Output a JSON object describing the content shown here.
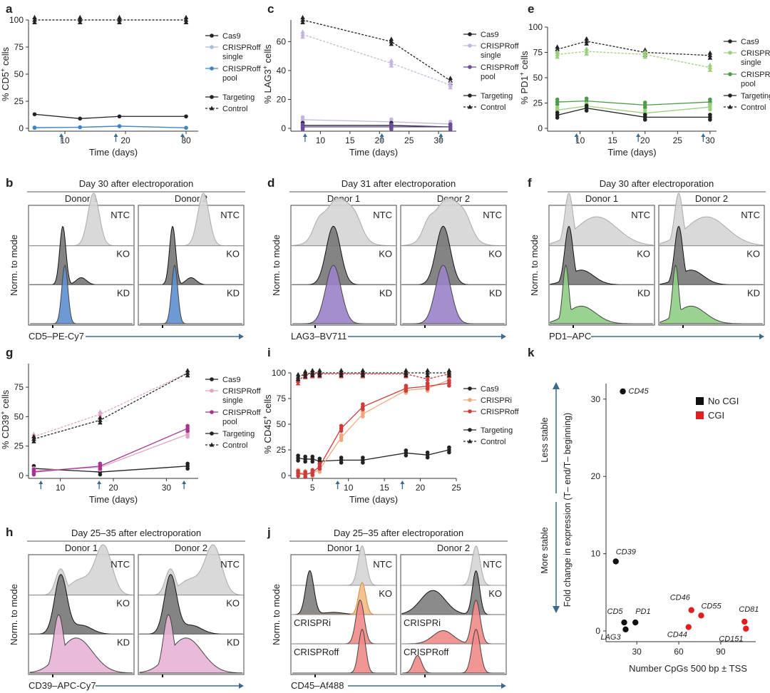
{
  "colors": {
    "cas9": "#222222",
    "off_single": "#aabbd9",
    "off_pool": "#3b86c3",
    "lag_single": "#c5b4dd",
    "lag_pool": "#6c4ba0",
    "pd_single": "#9ccf7c",
    "pd_pool": "#4f9a4a",
    "cd39_single": "#e2a2c8",
    "cd39_pool": "#a4348f",
    "crispri": "#f0a87a",
    "crisproff_red": "#cc3a3a",
    "arrow": "#3a6a8c",
    "gray_hist": "#d5d5d5",
    "dark_hist": "#777777",
    "ko_orange": "#f3c28e"
  },
  "chart_data": [
    {
      "panel": "a",
      "type": "line",
      "ylabel_pre": "% CD5",
      "ylabel_post": " cells",
      "sup": "+",
      "xlabel": "Time (days)",
      "xlim": [
        4,
        32
      ],
      "ylim": [
        0,
        100
      ],
      "xticks": [
        10,
        20,
        30
      ],
      "yticks": [
        0,
        25,
        50,
        75,
        100
      ],
      "arrows": [
        10,
        19,
        30
      ],
      "legend": [
        {
          "label": "Cas9",
          "color": "#222222",
          "marker": "circle",
          "style": "solid"
        },
        {
          "label": "CRISPRoff single",
          "color": "#aabbd9",
          "marker": "circle",
          "style": "solid"
        },
        {
          "label": "CRISPRoff pool",
          "color": "#3b86c3",
          "marker": "circle",
          "style": "solid"
        },
        {
          "gap": true
        },
        {
          "label": "Targeting",
          "color": "#222222",
          "marker": "circle",
          "style": "solid"
        },
        {
          "label": "Control",
          "color": "#222222",
          "marker": "triangle",
          "style": "dashed"
        }
      ],
      "series": [
        {
          "color": "#222222",
          "marker": "circle",
          "style": "solid",
          "x": [
            5,
            12.5,
            19,
            30
          ],
          "y": [
            13,
            9,
            11,
            11
          ]
        },
        {
          "color": "#aabbd9",
          "marker": "circle",
          "style": "solid",
          "x": [
            5,
            12.5,
            19,
            30
          ],
          "y": [
            1,
            1,
            2,
            0.5
          ]
        },
        {
          "color": "#3b86c3",
          "marker": "circle",
          "style": "solid",
          "x": [
            5,
            12.5,
            19,
            30
          ],
          "y": [
            0.5,
            1,
            2,
            0.5
          ]
        },
        {
          "color": "#3b86c3",
          "marker": "triangle",
          "style": "dashed",
          "x": [
            5,
            12.5,
            19,
            30
          ],
          "y": [
            100,
            100,
            100,
            100
          ]
        },
        {
          "color": "#222222",
          "marker": "triangle",
          "style": "dashed",
          "x": [
            5,
            12.5,
            19,
            30
          ],
          "y": [
            100,
            100,
            100,
            100
          ]
        }
      ]
    },
    {
      "panel": "c",
      "type": "line",
      "ylabel_pre": "% LAG3",
      "ylabel_post": " cells",
      "sup": "+",
      "xlabel": "Time (days)",
      "xlim": [
        5,
        33
      ],
      "ylim": [
        0,
        75
      ],
      "xticks": [
        10,
        15,
        20,
        25,
        30
      ],
      "yticks": [
        0,
        20,
        40,
        60
      ],
      "arrows": [
        8,
        21,
        31
      ],
      "legend": [
        {
          "label": "Cas9",
          "color": "#222222",
          "marker": "circle",
          "style": "solid"
        },
        {
          "label": "CRISPRoff single",
          "color": "#c5b4dd",
          "marker": "circle",
          "style": "solid"
        },
        {
          "label": "CRISPRoff pool",
          "color": "#6c4ba0",
          "marker": "circle",
          "style": "solid"
        },
        {
          "gap": true
        },
        {
          "label": "Targeting",
          "color": "#222222",
          "marker": "circle",
          "style": "solid"
        },
        {
          "label": "Control",
          "color": "#222222",
          "marker": "triangle",
          "style": "dashed"
        }
      ],
      "series": [
        {
          "color": "#c5b4dd",
          "marker": "circle",
          "style": "solid",
          "x": [
            7,
            22,
            32
          ],
          "y": [
            6,
            4.5,
            3
          ]
        },
        {
          "color": "#222222",
          "marker": "circle",
          "style": "solid",
          "x": [
            7,
            22,
            32
          ],
          "y": [
            2,
            2,
            1
          ]
        },
        {
          "color": "#6c4ba0",
          "marker": "circle",
          "style": "solid",
          "x": [
            7,
            22,
            32
          ],
          "y": [
            1,
            1,
            1
          ]
        },
        {
          "color": "#222222",
          "marker": "triangle",
          "style": "dashed",
          "x": [
            7,
            22,
            32
          ],
          "y": [
            75,
            60,
            33
          ]
        },
        {
          "color": "#c5b4dd",
          "marker": "triangle",
          "style": "dashed",
          "x": [
            7,
            22,
            32
          ],
          "y": [
            65,
            45,
            30
          ]
        }
      ]
    },
    {
      "panel": "e",
      "type": "line",
      "ylabel_pre": "% PD1",
      "ylabel_post": " cells",
      "sup": "+",
      "xlabel": "Time (days)",
      "xlim": [
        5,
        31
      ],
      "ylim": [
        0,
        100
      ],
      "xticks": [
        10,
        15,
        20,
        25,
        30
      ],
      "yticks": [
        0,
        25,
        50,
        75,
        100
      ],
      "arrows": [
        10,
        19.5,
        29.5
      ],
      "legend": [
        {
          "label": "Cas9",
          "color": "#222222",
          "marker": "circle",
          "style": "solid"
        },
        {
          "label": "CRISPRoff single",
          "color": "#9ccf7c",
          "marker": "circle",
          "style": "solid"
        },
        {
          "label": "CRISPRoff pool",
          "color": "#4f9a4a",
          "marker": "circle",
          "style": "solid"
        },
        {
          "label": "Targeting",
          "color": "#222222",
          "marker": "circle",
          "style": "solid"
        },
        {
          "label": "Control",
          "color": "#222222",
          "marker": "triangle",
          "style": "dashed"
        }
      ],
      "series": [
        {
          "color": "#4f9a4a",
          "marker": "circle",
          "style": "solid",
          "x": [
            6.5,
            11,
            20,
            30
          ],
          "y": [
            26,
            27,
            23,
            26
          ]
        },
        {
          "color": "#9ccf7c",
          "marker": "circle",
          "style": "solid",
          "x": [
            6.5,
            11,
            20,
            30
          ],
          "y": [
            18,
            22,
            15,
            21
          ]
        },
        {
          "color": "#222222",
          "marker": "circle",
          "style": "solid",
          "x": [
            6.5,
            11,
            20,
            30
          ],
          "y": [
            13,
            20,
            11,
            11
          ]
        },
        {
          "color": "#222222",
          "marker": "triangle",
          "style": "dashed",
          "x": [
            6.5,
            11,
            20,
            30
          ],
          "y": [
            78,
            86,
            75,
            72
          ]
        },
        {
          "color": "#9ccf7c",
          "marker": "triangle",
          "style": "dashed",
          "x": [
            6.5,
            11,
            20,
            30
          ],
          "y": [
            73,
            76,
            73,
            60
          ]
        }
      ]
    },
    {
      "panel": "g",
      "type": "line",
      "ylabel_pre": "% CD39",
      "ylabel_post": " cells",
      "sup": "+",
      "xlabel": "Time (days)",
      "xlim": [
        4,
        36
      ],
      "ylim": [
        0,
        95
      ],
      "xticks": [
        10,
        20,
        30
      ],
      "yticks": [
        0,
        25,
        50,
        75
      ],
      "arrows": [
        7,
        18,
        34
      ],
      "legend": [
        {
          "label": "Cas9",
          "color": "#222222",
          "marker": "circle",
          "style": "solid"
        },
        {
          "label": "CRISPRoff single",
          "color": "#e2a2c8",
          "marker": "circle",
          "style": "solid"
        },
        {
          "label": "CRISPRoff pool",
          "color": "#a4348f",
          "marker": "circle",
          "style": "solid"
        },
        {
          "label": "Targeting",
          "color": "#222222",
          "marker": "circle",
          "style": "solid"
        },
        {
          "label": "Control",
          "color": "#222222",
          "marker": "triangle",
          "style": "dashed"
        }
      ],
      "series": [
        {
          "color": "#222222",
          "marker": "circle",
          "style": "solid",
          "x": [
            5,
            17.5,
            34
          ],
          "y": [
            6,
            3,
            8
          ]
        },
        {
          "color": "#e2a2c8",
          "marker": "circle",
          "style": "solid",
          "x": [
            5,
            17.5,
            34
          ],
          "y": [
            4,
            7,
            35
          ]
        },
        {
          "color": "#a4348f",
          "marker": "circle",
          "style": "solid",
          "x": [
            5,
            17.5,
            34
          ],
          "y": [
            3,
            8,
            40
          ]
        },
        {
          "color": "#e2a2c8",
          "marker": "triangle",
          "style": "dashed",
          "x": [
            5,
            17.5,
            34
          ],
          "y": [
            33,
            52,
            87
          ]
        },
        {
          "color": "#222222",
          "marker": "triangle",
          "style": "dashed",
          "x": [
            5,
            17.5,
            34
          ],
          "y": [
            31,
            47,
            87
          ]
        }
      ]
    },
    {
      "panel": "i",
      "type": "line",
      "ylabel_pre": "% CD45",
      "ylabel_post": " cells",
      "sup": "+",
      "xlabel": "Time (days)",
      "xlim": [
        2,
        25
      ],
      "ylim": [
        0,
        100
      ],
      "xticks": [
        5,
        10,
        15,
        20,
        25
      ],
      "yticks": [
        0,
        25,
        50,
        75,
        100
      ],
      "arrows": [
        9,
        18
      ],
      "legend": [
        {
          "label": "Cas9",
          "color": "#222222",
          "marker": "circle",
          "style": "solid"
        },
        {
          "label": "CRISPRi",
          "color": "#f0a87a",
          "marker": "circle",
          "style": "solid"
        },
        {
          "label": "CRISPRoff",
          "color": "#cc3a3a",
          "marker": "circle",
          "style": "solid"
        },
        {
          "gap": true
        },
        {
          "label": "Targeting",
          "color": "#222222",
          "marker": "circle",
          "style": "solid"
        },
        {
          "label": "Control",
          "color": "#222222",
          "marker": "triangle",
          "style": "dashed"
        }
      ],
      "series": [
        {
          "color": "#222222",
          "marker": "circle",
          "style": "solid",
          "x": [
            3,
            4,
            5,
            6,
            9,
            12,
            18,
            21,
            24
          ],
          "y": [
            17,
            16,
            16,
            14,
            15,
            15,
            22,
            20,
            25
          ]
        },
        {
          "color": "#f0a87a",
          "marker": "circle",
          "style": "solid",
          "x": [
            3,
            4,
            5,
            6,
            9,
            12,
            18,
            21,
            24
          ],
          "y": [
            3,
            2,
            2,
            6,
            37,
            60,
            83,
            85,
            93
          ]
        },
        {
          "color": "#cc3a3a",
          "marker": "circle",
          "style": "solid",
          "x": [
            3,
            4,
            5,
            6,
            9,
            12,
            18,
            21,
            24
          ],
          "y": [
            2,
            1,
            3,
            9,
            46,
            67,
            85,
            87,
            90
          ]
        },
        {
          "color": "#cc3a3a",
          "marker": "triangle",
          "style": "dashed",
          "x": [
            3,
            4,
            5,
            6,
            9,
            12,
            18,
            21,
            24
          ],
          "y": [
            92,
            98,
            99,
            99,
            99,
            99,
            99,
            94,
            99
          ]
        },
        {
          "color": "#222222",
          "marker": "triangle",
          "style": "dashed",
          "x": [
            3,
            4,
            5,
            6,
            9,
            12,
            18,
            21,
            24
          ],
          "y": [
            96,
            99,
            100,
            100,
            100,
            100,
            100,
            100,
            100
          ]
        }
      ]
    },
    {
      "panel": "k",
      "type": "scatter",
      "ylabel": "Fold change in expression (T– end/T– beginning)",
      "xlabel": "Number CpGs 500 bp ± TSS",
      "xlim": [
        8,
        115
      ],
      "ylim": [
        -0.5,
        33
      ],
      "xticks": [
        30,
        60,
        90
      ],
      "yticks": [
        0,
        10,
        20,
        30
      ],
      "less_stable": "Less stable",
      "more_stable": "More stable",
      "legend": [
        {
          "label": "No CGI",
          "color": "#111111"
        },
        {
          "label": "CGI",
          "color": "#e02020"
        }
      ],
      "points": [
        {
          "label": "CD45",
          "x": 20,
          "y": 31,
          "cgi": false
        },
        {
          "label": "CD39",
          "x": 15,
          "y": 9,
          "cgi": false
        },
        {
          "label": "CD5",
          "x": 21,
          "y": 1.1,
          "cgi": false
        },
        {
          "label": "LAG3",
          "x": 22,
          "y": 0.2,
          "cgi": false
        },
        {
          "label": "PD1",
          "x": 29,
          "y": 1.1,
          "cgi": false
        },
        {
          "label": "CD46",
          "x": 69,
          "y": 2.7,
          "cgi": true
        },
        {
          "label": "CD55",
          "x": 76,
          "y": 2.0,
          "cgi": true
        },
        {
          "label": "CD44",
          "x": 67,
          "y": 0.5,
          "cgi": true
        },
        {
          "label": "CD81",
          "x": 107,
          "y": 1.2,
          "cgi": true
        },
        {
          "label": "CD151",
          "x": 108,
          "y": 0.3,
          "cgi": true
        }
      ]
    }
  ],
  "histograms": [
    {
      "panel": "b",
      "title": "Day 30 after electroporation",
      "donors": [
        "Donor 1",
        "Donor 2"
      ],
      "rows": [
        "NTC",
        "KO",
        "KD"
      ],
      "xlabel": "CD5–PE-Cy7",
      "ylabel": "Norm. to mode",
      "kd_color": "#5b8fcf",
      "type": "cd5"
    },
    {
      "panel": "d",
      "title": "Day 31 after electroporation",
      "donors": [
        "Donor 1",
        "Donor 2"
      ],
      "rows": [
        "NTC",
        "KO",
        "KD"
      ],
      "xlabel": "LAG3–BV711",
      "ylabel": "Norm. to mode",
      "kd_color": "#9b82c8",
      "type": "lag3"
    },
    {
      "panel": "f",
      "title": "Day 30 after electroporation",
      "donors": [
        "Donor 1",
        "Donor 2"
      ],
      "rows": [
        "NTC",
        "KO",
        "KD"
      ],
      "xlabel": "PD1–APC",
      "ylabel": "Norm. to mode",
      "kd_color": "#8fce83",
      "type": "pd1"
    },
    {
      "panel": "h",
      "title": "Day 25–35 after electroporation",
      "donors": [
        "Donor 1",
        "Donor 2"
      ],
      "rows": [
        "NTC",
        "KO",
        "KD"
      ],
      "xlabel": "CD39–APC-Cy7",
      "ylabel": "Norm. to mode",
      "kd_color": "#e7b3d6",
      "type": "cd39"
    },
    {
      "panel": "j",
      "title": "Day 25–35 after electroporation",
      "donors": [
        "Donor 1",
        "Donor 2"
      ],
      "rows": [
        "NTC",
        "KO",
        "CRISPRi",
        "CRISPRoff"
      ],
      "xlabel": "CD45–Af488",
      "ylabel": "Norm. to mode",
      "kd_color": "#ef8a8a",
      "type": "cd45"
    }
  ]
}
